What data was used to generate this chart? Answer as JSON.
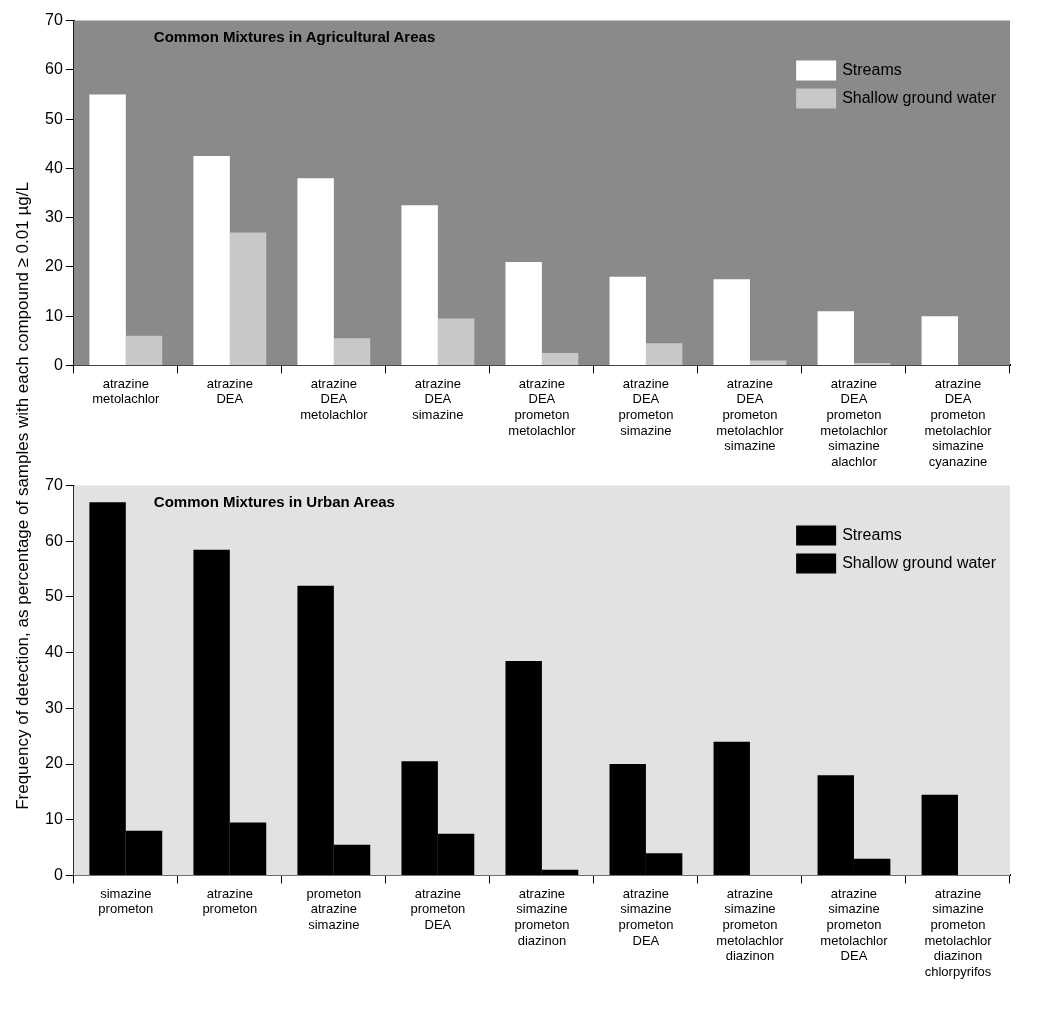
{
  "chart_data": [
    {
      "type": "bar",
      "title": "Common Mixtures in Agricultural Areas",
      "ylabel": "Frequency of detection, as percentage of samples with each compound ≥ 0.01 µg/L",
      "categories": [
        "atrazine\nmetolachlor",
        "atrazine\nDEA",
        "atrazine\nDEA\nmetolachlor",
        "atrazine\nDEA\nsimazine",
        "atrazine\nDEA\nprometon\nmetolachlor",
        "atrazine\nDEA\nprometon\nsimazine",
        "atrazine\nDEA\nprometon\nmetolachlor\nsimazine",
        "atrazine\nDEA\nprometon\nmetolachlor\nsimazine\nalachlor",
        "atrazine\nDEA\nprometon\nmetolachlor\nsimazine\ncyanazine"
      ],
      "series": [
        {
          "name": "Streams",
          "color": "#ffffff",
          "values": [
            55,
            42.5,
            38,
            32.5,
            21,
            18,
            17.5,
            11,
            10
          ]
        },
        {
          "name": "Shallow ground water",
          "color": "#c8c8c8",
          "values": [
            6,
            27,
            5.5,
            9.5,
            2.5,
            4.5,
            1,
            0.5,
            0
          ]
        }
      ],
      "ylim": [
        0,
        70
      ],
      "yticks": [
        0,
        10,
        20,
        30,
        40,
        50,
        60,
        70
      ],
      "legend": "top right",
      "grid": false
    },
    {
      "type": "bar",
      "title": "Common Mixtures in Urban Areas",
      "categories": [
        "simazine\nprometon",
        "atrazine\nprometon",
        "prometon\natrazine\nsimazine",
        "atrazine\nprometon\nDEA",
        "atrazine\nsimazine\nprometon\ndiazinon",
        "atrazine\nsimazine\nprometon\nDEA",
        "atrazine\nsimazine\nprometon\nmetolachlor\ndiazinon",
        "atrazine\nsimazine\nprometon\nmetolachlor\nDEA",
        "atrazine\nsimazine\nprometon\nmetolachlor\ndiazinon\nchlorpyrifos"
      ],
      "series": [
        {
          "name": "Streams",
          "color": "#000000",
          "values": [
            67,
            58.5,
            52,
            20.5,
            38.5,
            20,
            24,
            18,
            14.5
          ]
        },
        {
          "name": "Shallow ground water",
          "color": "#000000",
          "values": [
            8,
            9.5,
            5.5,
            7.5,
            1,
            4,
            0,
            3,
            0
          ]
        }
      ],
      "ylim": [
        0,
        70
      ],
      "yticks": [
        0,
        10,
        20,
        30,
        40,
        50,
        60,
        70
      ],
      "legend": "top right",
      "grid": false
    }
  ]
}
